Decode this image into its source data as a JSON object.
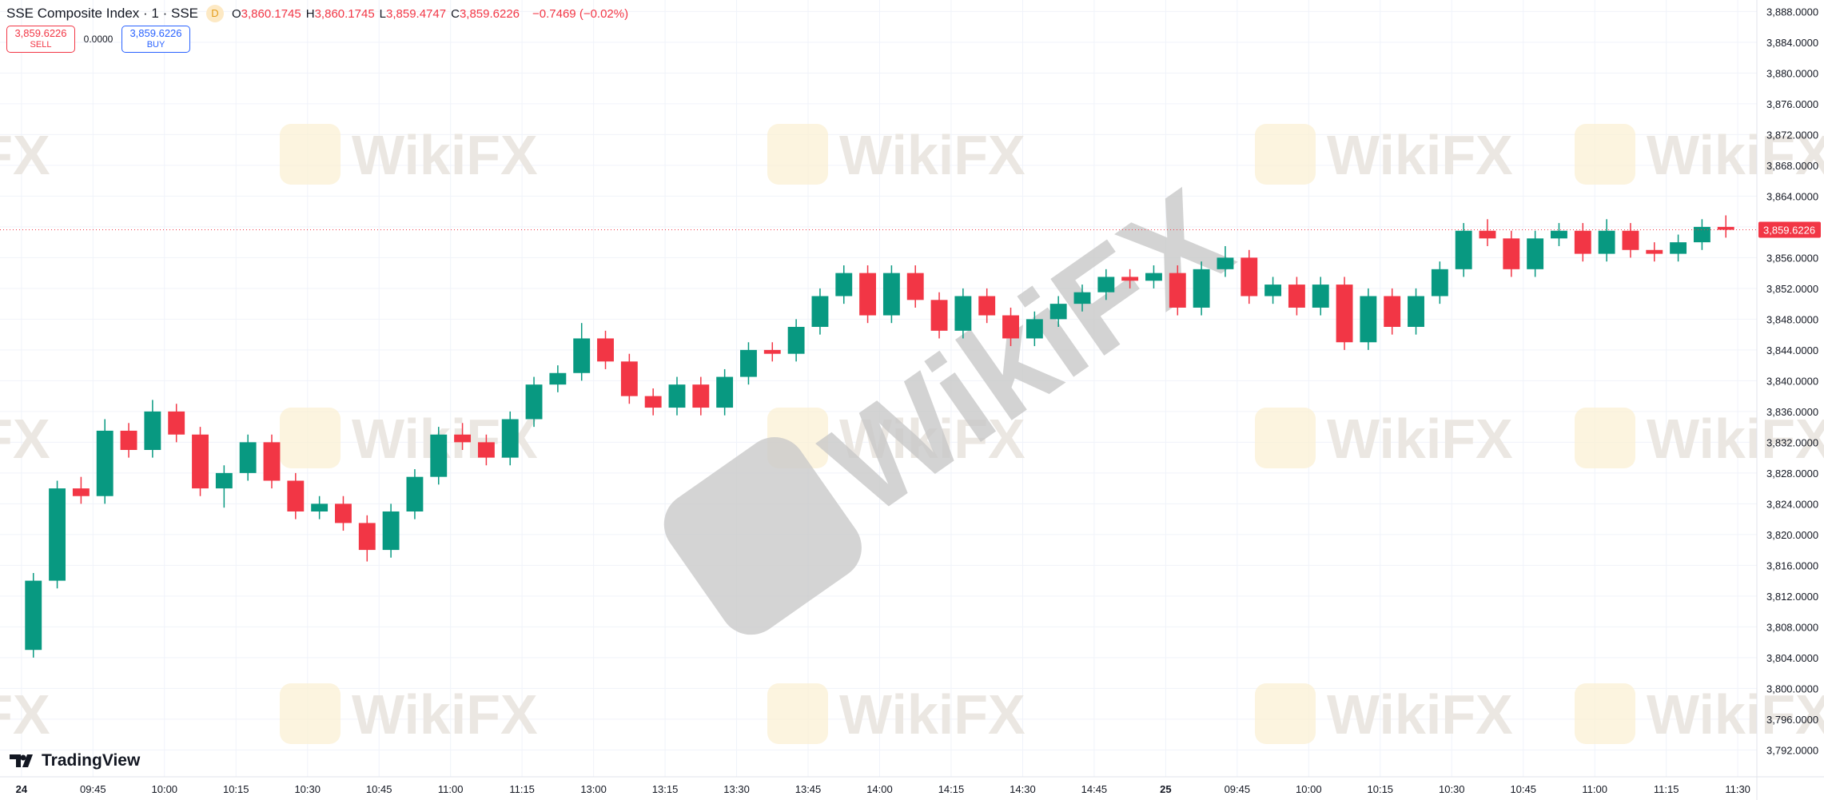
{
  "header": {
    "symbol": "SSE Composite Index · 1 · SSE",
    "interval_badge": "D",
    "ohlc": [
      {
        "letter": "O",
        "text": "3,860.1745"
      },
      {
        "letter": "H",
        "text": "3,860.1745"
      },
      {
        "letter": "L",
        "text": "3,859.4747"
      },
      {
        "letter": "C",
        "text": "3,859.6226"
      }
    ],
    "change": "−0.7469 (−0.02%)",
    "sell": {
      "price": "3,859.6226",
      "label": "SELL"
    },
    "spread": "0.0000",
    "buy": {
      "price": "3,859.6226",
      "label": "BUY"
    }
  },
  "logo": "TradingView",
  "watermark": "WikiFX",
  "chart_data": {
    "type": "candlestick",
    "up_color": "#089981",
    "down_color": "#f23645",
    "grid": true,
    "last_price": {
      "value": 3859.6226,
      "label": "3,859.6226"
    },
    "xlim": [
      -0.9,
      72.8
    ],
    "xticks": [
      {
        "value": 0,
        "label": "24"
      },
      {
        "value": 3,
        "label": "09:45"
      },
      {
        "value": 6,
        "label": "10:00"
      },
      {
        "value": 9,
        "label": "10:15"
      },
      {
        "value": 12,
        "label": "10:30"
      },
      {
        "value": 15,
        "label": "10:45"
      },
      {
        "value": 18,
        "label": "11:00"
      },
      {
        "value": 21,
        "label": "11:15"
      },
      {
        "value": 24,
        "label": "13:00"
      },
      {
        "value": 27,
        "label": "13:15"
      },
      {
        "value": 30,
        "label": "13:30"
      },
      {
        "value": 33,
        "label": "13:45"
      },
      {
        "value": 36,
        "label": "14:00"
      },
      {
        "value": 39,
        "label": "14:15"
      },
      {
        "value": 42,
        "label": "14:30"
      },
      {
        "value": 45,
        "label": "14:45"
      },
      {
        "value": 48,
        "label": "25"
      },
      {
        "value": 51,
        "label": "09:45"
      },
      {
        "value": 54,
        "label": "10:00"
      },
      {
        "value": 57,
        "label": "10:15"
      },
      {
        "value": 60,
        "label": "10:30"
      },
      {
        "value": 63,
        "label": "10:45"
      },
      {
        "value": 66,
        "label": "11:00"
      },
      {
        "value": 69,
        "label": "11:15"
      },
      {
        "value": 72,
        "label": "11:30"
      }
    ],
    "ylim": [
      3788.5,
      3889.5
    ],
    "yticks": [
      {
        "value": 3792,
        "label": "3,792.0000"
      },
      {
        "value": 3796,
        "label": "3,796.0000"
      },
      {
        "value": 3800,
        "label": "3,800.0000"
      },
      {
        "value": 3804,
        "label": "3,804.0000"
      },
      {
        "value": 3808,
        "label": "3,808.0000"
      },
      {
        "value": 3812,
        "label": "3,812.0000"
      },
      {
        "value": 3816,
        "label": "3,816.0000"
      },
      {
        "value": 3820,
        "label": "3,820.0000"
      },
      {
        "value": 3824,
        "label": "3,824.0000"
      },
      {
        "value": 3828,
        "label": "3,828.0000"
      },
      {
        "value": 3832,
        "label": "3,832.0000"
      },
      {
        "value": 3836,
        "label": "3,836.0000"
      },
      {
        "value": 3840,
        "label": "3,840.0000"
      },
      {
        "value": 3844,
        "label": "3,844.0000"
      },
      {
        "value": 3848,
        "label": "3,848.0000"
      },
      {
        "value": 3852,
        "label": "3,852.0000"
      },
      {
        "value": 3856,
        "label": "3,856.0000"
      },
      {
        "value": 3860,
        "label": "3,860.0000"
      },
      {
        "value": 3864,
        "label": "3,864.0000"
      },
      {
        "value": 3868,
        "label": "3,868.0000"
      },
      {
        "value": 3872,
        "label": "3,872.0000"
      },
      {
        "value": 3876,
        "label": "3,876.0000"
      },
      {
        "value": 3880,
        "label": "3,880.0000"
      },
      {
        "value": 3884,
        "label": "3,884.0000"
      },
      {
        "value": 3888,
        "label": "3,888.0000"
      }
    ],
    "open": [
      3805,
      3814,
      3826,
      3825,
      3833.5,
      3831,
      3836,
      3833,
      3826,
      3828,
      3832,
      3827,
      3823,
      3824,
      3821.5,
      3818,
      3823,
      3827.5,
      3833,
      3832,
      3830,
      3835,
      3839.5,
      3841,
      3845.5,
      3842.5,
      3838,
      3836.5,
      3839.5,
      3836.5,
      3840.5,
      3844,
      3843.5,
      3847,
      3851,
      3854,
      3848.5,
      3854,
      3850.5,
      3846.5,
      3851,
      3848.5,
      3845.5,
      3848,
      3850,
      3851.5,
      3853.5,
      3853,
      3854,
      3849.5,
      3854.5,
      3856,
      3851,
      3852.5,
      3849.5,
      3852.5,
      3845,
      3851,
      3847,
      3851,
      3854.5,
      3859.5,
      3858.5,
      3854.5,
      3858.5,
      3859.5,
      3856.5,
      3859.5,
      3857,
      3856.5,
      3858,
      3860
    ],
    "high": [
      3815,
      3827,
      3827.5,
      3835,
      3834.5,
      3837.5,
      3837,
      3834,
      3829,
      3833,
      3833,
      3828,
      3825,
      3825,
      3822.5,
      3824,
      3828.5,
      3834,
      3834.5,
      3833,
      3836,
      3840.5,
      3842,
      3847.5,
      3846.5,
      3843.5,
      3839,
      3840.5,
      3840.5,
      3841.5,
      3845,
      3845,
      3848,
      3852,
      3855,
      3855,
      3855,
      3855,
      3851.5,
      3852,
      3852,
      3849.5,
      3849,
      3851,
      3852.5,
      3854.5,
      3854.5,
      3855,
      3855,
      3855.5,
      3857.5,
      3857,
      3853.5,
      3853.5,
      3853.5,
      3853.5,
      3852,
      3852,
      3852,
      3855.5,
      3860.5,
      3861,
      3859.5,
      3859.5,
      3860.5,
      3860.5,
      3861,
      3860.5,
      3858,
      3859,
      3861,
      3861.5
    ],
    "low": [
      3804,
      3813,
      3824,
      3824,
      3830,
      3830,
      3832,
      3825,
      3823.5,
      3827,
      3826,
      3822,
      3822,
      3820.5,
      3816.5,
      3817,
      3822,
      3826.5,
      3831,
      3829,
      3829,
      3834,
      3838.5,
      3840,
      3841.5,
      3837,
      3835.5,
      3835.5,
      3835.5,
      3835.5,
      3839.5,
      3842.5,
      3842.5,
      3846,
      3850,
      3847.5,
      3847.5,
      3849.5,
      3845.5,
      3845.5,
      3847.5,
      3844.5,
      3844.5,
      3847,
      3849,
      3850.5,
      3852,
      3852,
      3848.5,
      3848.5,
      3853.5,
      3850,
      3850,
      3848.5,
      3848.5,
      3844,
      3844,
      3846,
      3846,
      3850,
      3853.5,
      3857.5,
      3853.5,
      3853.5,
      3857.5,
      3855.5,
      3855.5,
      3856,
      3855.5,
      3855.5,
      3857,
      3858.6
    ],
    "close": [
      3814,
      3826,
      3825,
      3833.5,
      3831,
      3836,
      3833,
      3826,
      3828,
      3832,
      3827,
      3823,
      3824,
      3821.5,
      3818,
      3823,
      3827.5,
      3833,
      3832,
      3830,
      3835,
      3839.5,
      3841,
      3845.5,
      3842.5,
      3838,
      3836.5,
      3839.5,
      3836.5,
      3840.5,
      3844,
      3843.5,
      3847,
      3851,
      3854,
      3848.5,
      3854,
      3850.5,
      3846.5,
      3851,
      3848.5,
      3845.5,
      3848,
      3850,
      3851.5,
      3853.5,
      3853,
      3854,
      3849.5,
      3854.5,
      3856,
      3851,
      3852.5,
      3849.5,
      3852.5,
      3845,
      3851,
      3847,
      3851,
      3854.5,
      3859.5,
      3858.5,
      3854.5,
      3858.5,
      3859.5,
      3856.5,
      3859.5,
      3857,
      3856.5,
      3858,
      3860,
      3859.6226
    ]
  }
}
